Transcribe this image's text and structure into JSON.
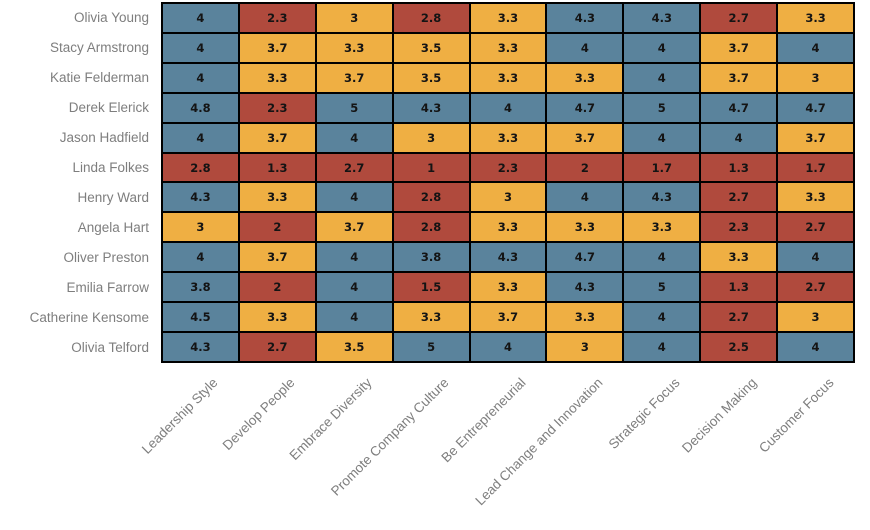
{
  "chart_data": {
    "type": "heatmap",
    "title": "",
    "grid_on": true,
    "legend_position": "none",
    "columns": [
      "Leadership Style",
      "Develop People",
      "Embrace Diversity",
      "Promote Company Culture",
      "Be Entrepreneurial",
      "Lead Change and Innovation",
      "Strategic Focus",
      "Decision Making",
      "Customer Focus"
    ],
    "rows": [
      "Olivia Young",
      "Stacy Armstrong",
      "Katie Felderman",
      "Derek Elerick",
      "Jason Hadfield",
      "Linda Folkes",
      "Henry Ward",
      "Angela Hart",
      "Oliver Preston",
      "Emilia Farrow",
      "Catherine Kensome",
      "Olivia Telford"
    ],
    "values": [
      [
        4,
        2.3,
        3,
        2.8,
        3.3,
        4.3,
        4.3,
        2.7,
        3.3
      ],
      [
        4,
        3.7,
        3.3,
        3.5,
        3.3,
        4,
        4,
        3.7,
        4
      ],
      [
        4,
        3.3,
        3.7,
        3.5,
        3.3,
        3.3,
        4,
        3.7,
        3
      ],
      [
        4.8,
        2.3,
        5,
        4.3,
        4,
        4.7,
        5,
        4.7,
        4.7
      ],
      [
        4,
        3.7,
        4,
        3,
        3.3,
        3.7,
        4,
        4,
        3.7
      ],
      [
        2.8,
        1.3,
        2.7,
        1,
        2.3,
        2,
        1.7,
        1.3,
        1.7
      ],
      [
        4.3,
        3.3,
        4,
        2.8,
        3,
        4,
        4.3,
        2.7,
        3.3
      ],
      [
        3,
        2,
        3.7,
        2.8,
        3.3,
        3.3,
        3.3,
        2.3,
        2.7
      ],
      [
        4,
        3.7,
        4,
        3.8,
        4.3,
        4.7,
        4,
        3.3,
        4
      ],
      [
        3.8,
        2,
        4,
        1.5,
        3.3,
        4.3,
        5,
        1.3,
        2.7
      ],
      [
        4.5,
        3.3,
        4,
        3.3,
        3.7,
        3.3,
        4,
        2.7,
        3
      ],
      [
        4.3,
        2.7,
        3.5,
        5,
        4,
        3,
        4,
        2.5,
        4
      ]
    ],
    "value_range": [
      1,
      5
    ],
    "color_scale": {
      "low_color": "#B04A3D",
      "mid_color": "#EFAF43",
      "high_color": "#5A839C",
      "low_max": 3,
      "high_min": 3.8
    },
    "cell_text_color": "#141414",
    "axis_label_color": "#7e7e7e",
    "grid_line_color": "#000000"
  }
}
